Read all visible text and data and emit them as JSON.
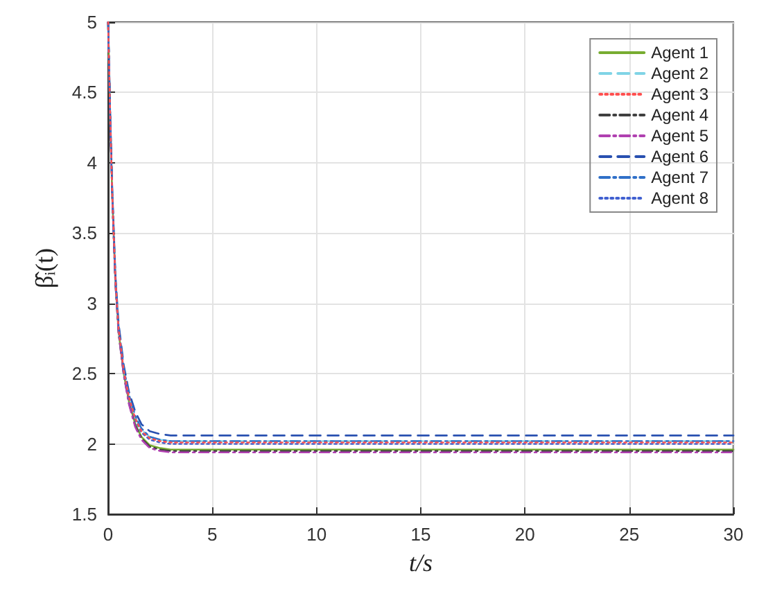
{
  "chart_data": {
    "type": "line",
    "xlabel": "t/s",
    "ylabel": "β̂ᵢ(t)",
    "xlim": [
      0,
      30
    ],
    "ylim": [
      1.5,
      5
    ],
    "xticks": [
      0,
      5,
      10,
      15,
      20,
      25,
      30
    ],
    "yticks": [
      1.5,
      2,
      2.5,
      3,
      3.5,
      4,
      4.5,
      5
    ],
    "grid": true,
    "legend": "top right",
    "marker": "none",
    "x": [
      0,
      0.1,
      0.2,
      0.35,
      0.5,
      0.75,
      1,
      1.3,
      1.6,
      2,
      2.5,
      3,
      5,
      10,
      15,
      20,
      25,
      30
    ],
    "series": [
      {
        "name": "Agent 1",
        "color": "#77ac30",
        "line_style": "solid",
        "values": [
          5,
          4.3,
          3.75,
          3.15,
          2.8,
          2.5,
          2.3,
          2.14,
          2.05,
          1.99,
          1.97,
          1.96,
          1.96,
          1.96,
          1.96,
          1.96,
          1.96,
          1.96
        ]
      },
      {
        "name": "Agent 2",
        "color": "#80d4e6",
        "line_style": "dashed",
        "values": [
          5,
          4.32,
          3.77,
          3.18,
          2.83,
          2.53,
          2.34,
          2.19,
          2.1,
          2.05,
          2.03,
          2.02,
          2.02,
          2.02,
          2.02,
          2.02,
          2.02,
          2.02
        ]
      },
      {
        "name": "Agent 3",
        "color": "#ff5050",
        "line_style": "dotted",
        "values": [
          5,
          4.32,
          3.77,
          3.17,
          2.82,
          2.52,
          2.33,
          2.18,
          2.09,
          2.04,
          2.02,
          2.01,
          2.01,
          2.01,
          2.01,
          2.01,
          2.01,
          2.01
        ]
      },
      {
        "name": "Agent 4",
        "color": "#404040",
        "line_style": "dashdot",
        "values": [
          5,
          4.3,
          3.75,
          3.14,
          2.79,
          2.49,
          2.29,
          2.13,
          2.04,
          1.98,
          1.96,
          1.95,
          1.95,
          1.95,
          1.95,
          1.95,
          1.95,
          1.95
        ]
      },
      {
        "name": "Agent 5",
        "color": "#b040b0",
        "line_style": "dashdot",
        "values": [
          5,
          4.3,
          3.74,
          3.14,
          2.79,
          2.49,
          2.28,
          2.12,
          2.03,
          1.97,
          1.95,
          1.94,
          1.94,
          1.94,
          1.94,
          1.94,
          1.94,
          1.94
        ]
      },
      {
        "name": "Agent 6",
        "color": "#2850b0",
        "line_style": "dashed",
        "values": [
          5,
          4.35,
          3.8,
          3.2,
          2.86,
          2.56,
          2.37,
          2.23,
          2.14,
          2.09,
          2.07,
          2.06,
          2.06,
          2.06,
          2.06,
          2.06,
          2.06,
          2.06
        ]
      },
      {
        "name": "Agent 7",
        "color": "#3070c8",
        "line_style": "dashdot",
        "values": [
          5,
          4.33,
          3.78,
          3.18,
          2.84,
          2.54,
          2.35,
          2.2,
          2.11,
          2.05,
          2.03,
          2.02,
          2.02,
          2.02,
          2.02,
          2.02,
          2.02,
          2.02
        ]
      },
      {
        "name": "Agent 8",
        "color": "#4060d0",
        "line_style": "dotted",
        "values": [
          5,
          4.31,
          3.76,
          3.16,
          2.81,
          2.51,
          2.32,
          2.17,
          2.08,
          2.03,
          2.01,
          2,
          2,
          2,
          2,
          2,
          2,
          2
        ]
      }
    ]
  }
}
